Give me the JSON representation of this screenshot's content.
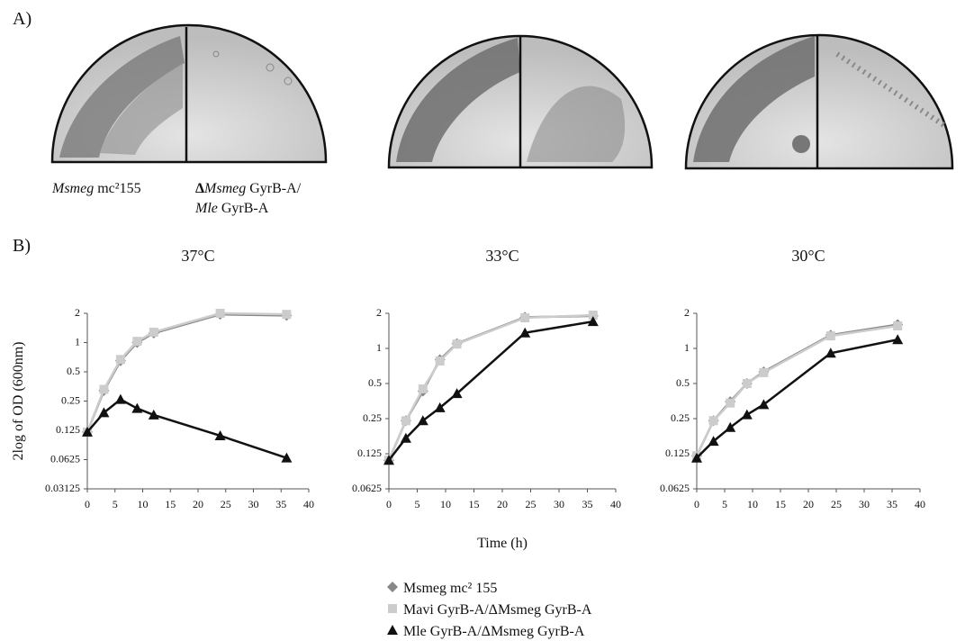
{
  "panels": [
    "A)",
    "B)"
  ],
  "plates": {
    "captions": [
      [
        "Msmeg",
        "mc²155"
      ],
      [
        "Δ",
        "Msmeg",
        "GyrB-A/"
      ],
      [
        "Mle",
        "GyrB-A"
      ]
    ]
  },
  "chart_data": [
    {
      "type": "line",
      "title": "37°C",
      "y_label": "2log of OD (600nm)",
      "log_base": 2,
      "legend": "bottom",
      "x": [
        0,
        3,
        6,
        9,
        12,
        24,
        36
      ],
      "xlim": [
        0,
        40
      ],
      "xticks": [
        0,
        5,
        10,
        15,
        20,
        25,
        30,
        35,
        40
      ],
      "ylim": [
        0.03125,
        2
      ],
      "yticks": [
        0.03125,
        0.0625,
        0.125,
        0.25,
        0.5,
        1,
        2
      ],
      "series": [
        {
          "name": "Msmeg mc² 155",
          "color": "#888888",
          "marker": "diamond",
          "values": [
            0.12,
            0.32,
            0.65,
            1.0,
            1.25,
            1.95,
            1.9
          ]
        },
        {
          "name": "Mavi GyrB-A/ΔMsmeg GyrB-A",
          "color": "#cccccc",
          "marker": "square",
          "values": [
            0.12,
            0.33,
            0.67,
            1.03,
            1.28,
            2,
            1.95
          ]
        },
        {
          "name": "Mle GyrB-A/ΔMsmeg GyrB-A",
          "color": "#111111",
          "marker": "triangle",
          "values": [
            0.12,
            0.19,
            0.26,
            0.21,
            0.18,
            0.11,
            0.065
          ]
        }
      ]
    },
    {
      "type": "line",
      "title": "33°C",
      "x_label": "Time (h)",
      "log_base": 2,
      "x": [
        0,
        3,
        6,
        9,
        12,
        24,
        36
      ],
      "xlim": [
        0,
        40
      ],
      "xticks": [
        0,
        5,
        10,
        15,
        20,
        25,
        30,
        35,
        40
      ],
      "ylim": [
        0.0625,
        2
      ],
      "yticks": [
        0.0625,
        0.125,
        0.25,
        0.5,
        1,
        2
      ],
      "series": [
        {
          "name": "Msmeg mc² 155",
          "color": "#888888",
          "marker": "diamond",
          "values": [
            0.11,
            0.24,
            0.43,
            0.8,
            1.1,
            1.85,
            1.9
          ]
        },
        {
          "name": "Mavi GyrB-A/ΔMsmeg GyrB-A",
          "color": "#cccccc",
          "marker": "square",
          "values": [
            0.11,
            0.24,
            0.45,
            0.78,
            1.09,
            1.83,
            1.93
          ]
        },
        {
          "name": "Mle GyrB-A/ΔMsmeg GyrB-A",
          "color": "#111111",
          "marker": "triangle",
          "values": [
            0.11,
            0.17,
            0.24,
            0.31,
            0.41,
            1.36,
            1.7
          ]
        }
      ]
    },
    {
      "type": "line",
      "title": "30°C",
      "log_base": 2,
      "x": [
        0,
        3,
        6,
        9,
        12,
        24,
        36
      ],
      "xlim": [
        0,
        40
      ],
      "xticks": [
        0,
        5,
        10,
        15,
        20,
        25,
        30,
        35,
        40
      ],
      "ylim": [
        0.0625,
        2
      ],
      "yticks": [
        0.0625,
        0.125,
        0.25,
        0.5,
        1,
        2
      ],
      "series": [
        {
          "name": "Msmeg mc² 155",
          "color": "#888888",
          "marker": "diamond",
          "values": [
            0.12,
            0.24,
            0.35,
            0.5,
            0.63,
            1.3,
            1.6
          ]
        },
        {
          "name": "Mavi GyrB-A/ΔMsmeg GyrB-A",
          "color": "#cccccc",
          "marker": "square",
          "values": [
            0.12,
            0.24,
            0.34,
            0.5,
            0.62,
            1.28,
            1.56
          ]
        },
        {
          "name": "Mle GyrB-A/ΔMsmeg GyrB-A",
          "color": "#111111",
          "marker": "triangle",
          "values": [
            0.115,
            0.16,
            0.21,
            0.27,
            0.33,
            0.91,
            1.19
          ]
        }
      ]
    }
  ]
}
